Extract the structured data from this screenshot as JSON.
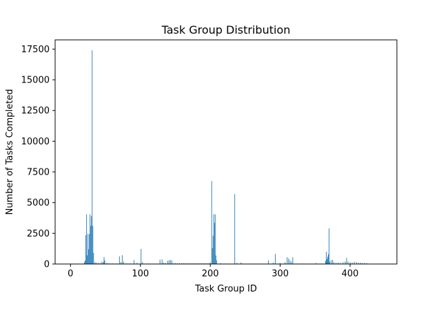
{
  "chart_data": {
    "type": "bar",
    "title": "Task Group Distribution",
    "xlabel": "Task Group ID",
    "ylabel": "Number of Tasks Completed",
    "xlim": [
      -22,
      467
    ],
    "ylim": [
      0,
      18250
    ],
    "xticks": [
      0,
      100,
      200,
      300,
      400
    ],
    "xtick_labels": [
      "0",
      "100",
      "200",
      "300",
      "400"
    ],
    "yticks": [
      0,
      2500,
      5000,
      7500,
      10000,
      12500,
      15000,
      17500
    ],
    "ytick_labels": [
      "0",
      "2500",
      "5000",
      "7500",
      "10000",
      "12500",
      "15000",
      "17500"
    ],
    "grid": false,
    "bar_color": "#1f77b4",
    "bars": [
      {
        "x": 20,
        "y": 150
      },
      {
        "x": 21,
        "y": 300
      },
      {
        "x": 22,
        "y": 2350
      },
      {
        "x": 23,
        "y": 4050
      },
      {
        "x": 24,
        "y": 700
      },
      {
        "x": 25,
        "y": 2450
      },
      {
        "x": 26,
        "y": 1200
      },
      {
        "x": 27,
        "y": 2450
      },
      {
        "x": 28,
        "y": 4050
      },
      {
        "x": 29,
        "y": 3100
      },
      {
        "x": 30,
        "y": 3900
      },
      {
        "x": 31,
        "y": 17400
      },
      {
        "x": 32,
        "y": 3100
      },
      {
        "x": 33,
        "y": 900
      },
      {
        "x": 35,
        "y": 150
      },
      {
        "x": 37,
        "y": 120
      },
      {
        "x": 40,
        "y": 100
      },
      {
        "x": 43,
        "y": 80
      },
      {
        "x": 45,
        "y": 200
      },
      {
        "x": 47,
        "y": 150
      },
      {
        "x": 48,
        "y": 580
      },
      {
        "x": 49,
        "y": 300
      },
      {
        "x": 52,
        "y": 90
      },
      {
        "x": 55,
        "y": 60
      },
      {
        "x": 60,
        "y": 50
      },
      {
        "x": 65,
        "y": 40
      },
      {
        "x": 70,
        "y": 620
      },
      {
        "x": 72,
        "y": 150
      },
      {
        "x": 74,
        "y": 720
      },
      {
        "x": 76,
        "y": 200
      },
      {
        "x": 80,
        "y": 50
      },
      {
        "x": 85,
        "y": 40
      },
      {
        "x": 91,
        "y": 320
      },
      {
        "x": 95,
        "y": 80
      },
      {
        "x": 101,
        "y": 1230
      },
      {
        "x": 103,
        "y": 150
      },
      {
        "x": 110,
        "y": 40
      },
      {
        "x": 120,
        "y": 30
      },
      {
        "x": 128,
        "y": 350
      },
      {
        "x": 131,
        "y": 380
      },
      {
        "x": 133,
        "y": 120
      },
      {
        "x": 136,
        "y": 80
      },
      {
        "x": 139,
        "y": 270
      },
      {
        "x": 141,
        "y": 300
      },
      {
        "x": 143,
        "y": 330
      },
      {
        "x": 145,
        "y": 290
      },
      {
        "x": 148,
        "y": 60
      },
      {
        "x": 150,
        "y": 60
      },
      {
        "x": 153,
        "y": 60
      },
      {
        "x": 156,
        "y": 60
      },
      {
        "x": 159,
        "y": 60
      },
      {
        "x": 162,
        "y": 60
      },
      {
        "x": 165,
        "y": 60
      },
      {
        "x": 168,
        "y": 60
      },
      {
        "x": 171,
        "y": 60
      },
      {
        "x": 174,
        "y": 60
      },
      {
        "x": 177,
        "y": 60
      },
      {
        "x": 180,
        "y": 60
      },
      {
        "x": 183,
        "y": 60
      },
      {
        "x": 186,
        "y": 60
      },
      {
        "x": 189,
        "y": 60
      },
      {
        "x": 192,
        "y": 60
      },
      {
        "x": 195,
        "y": 60
      },
      {
        "x": 198,
        "y": 60
      },
      {
        "x": 200,
        "y": 120
      },
      {
        "x": 202,
        "y": 6750
      },
      {
        "x": 203,
        "y": 1300
      },
      {
        "x": 204,
        "y": 2300
      },
      {
        "x": 205,
        "y": 4050
      },
      {
        "x": 206,
        "y": 3350
      },
      {
        "x": 207,
        "y": 4050
      },
      {
        "x": 208,
        "y": 700
      },
      {
        "x": 209,
        "y": 300
      },
      {
        "x": 215,
        "y": 60
      },
      {
        "x": 222,
        "y": 40
      },
      {
        "x": 235,
        "y": 5700
      },
      {
        "x": 238,
        "y": 80
      },
      {
        "x": 244,
        "y": 120
      },
      {
        "x": 283,
        "y": 300
      },
      {
        "x": 290,
        "y": 100
      },
      {
        "x": 293,
        "y": 820
      },
      {
        "x": 300,
        "y": 80
      },
      {
        "x": 307,
        "y": 150
      },
      {
        "x": 310,
        "y": 550
      },
      {
        "x": 312,
        "y": 450
      },
      {
        "x": 314,
        "y": 300
      },
      {
        "x": 316,
        "y": 200
      },
      {
        "x": 318,
        "y": 550
      },
      {
        "x": 330,
        "y": 40
      },
      {
        "x": 340,
        "y": 30
      },
      {
        "x": 351,
        "y": 80
      },
      {
        "x": 365,
        "y": 250
      },
      {
        "x": 366,
        "y": 1000
      },
      {
        "x": 367,
        "y": 400
      },
      {
        "x": 368,
        "y": 600
      },
      {
        "x": 369,
        "y": 800
      },
      {
        "x": 370,
        "y": 2900
      },
      {
        "x": 371,
        "y": 200
      },
      {
        "x": 373,
        "y": 300
      },
      {
        "x": 375,
        "y": 350
      },
      {
        "x": 377,
        "y": 150
      },
      {
        "x": 380,
        "y": 100
      },
      {
        "x": 383,
        "y": 120
      },
      {
        "x": 386,
        "y": 100
      },
      {
        "x": 390,
        "y": 150
      },
      {
        "x": 393,
        "y": 200
      },
      {
        "x": 395,
        "y": 500
      },
      {
        "x": 397,
        "y": 200
      },
      {
        "x": 400,
        "y": 150
      },
      {
        "x": 403,
        "y": 120
      },
      {
        "x": 406,
        "y": 180
      },
      {
        "x": 409,
        "y": 150
      },
      {
        "x": 412,
        "y": 120
      },
      {
        "x": 415,
        "y": 100
      },
      {
        "x": 418,
        "y": 80
      },
      {
        "x": 421,
        "y": 80
      },
      {
        "x": 424,
        "y": 60
      }
    ]
  }
}
